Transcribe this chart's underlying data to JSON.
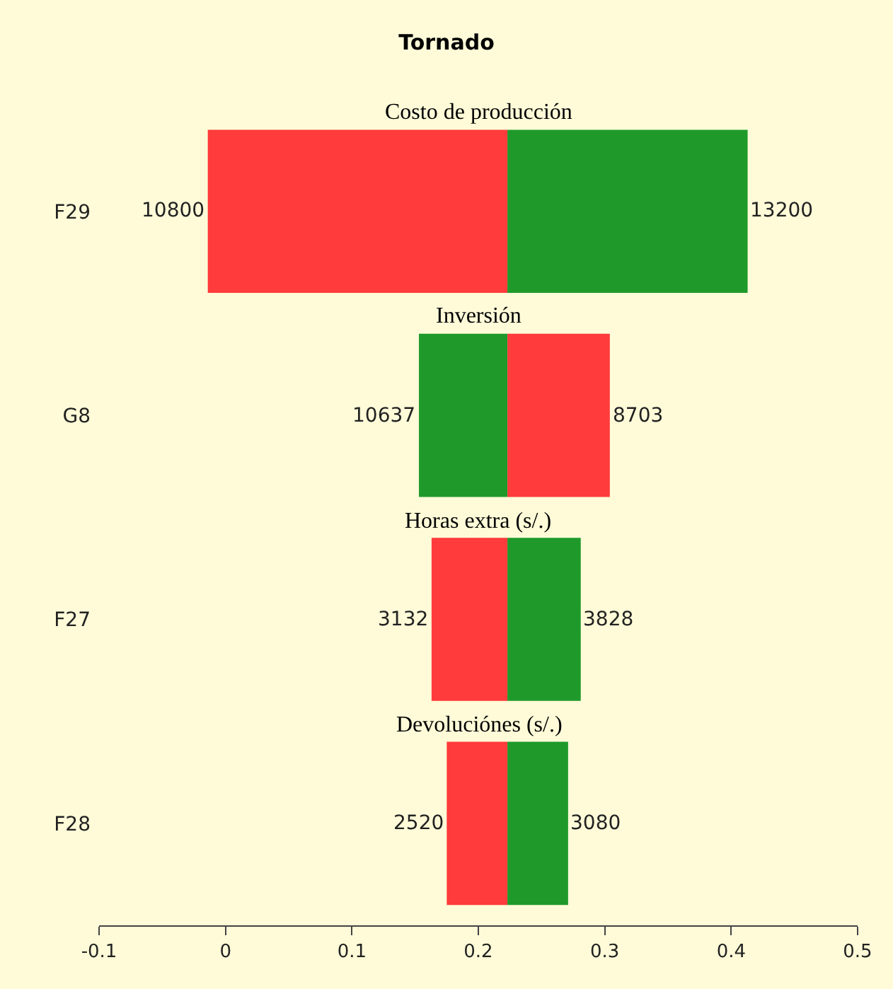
{
  "chart_data": {
    "type": "bar",
    "orientation": "horizontal",
    "title": "Tornado",
    "categories": [
      "F29",
      "G8",
      "F27",
      "F28"
    ],
    "series": [
      {
        "colors": [
          "#ff3b3b",
          "#1f9a2a",
          "#ff3b3b",
          "#ff3b3b"
        ],
        "base": [
          -0.014,
          0.153,
          0.163,
          0.175
        ],
        "values": [
          0.237,
          0.07,
          0.06,
          0.048
        ]
      },
      {
        "colors": [
          "#1f9a2a",
          "#ff3b3b",
          "#1f9a2a",
          "#1f9a2a"
        ],
        "base": [
          0.223,
          0.223,
          0.223,
          0.223
        ],
        "values": [
          0.19,
          0.081,
          0.058,
          0.048
        ]
      }
    ],
    "annotations": [
      "Costo de producción",
      "Inversión",
      "Horas extra (s/.)",
      "Devoluciónes (s/.)",
      {
        "text": "10800",
        "x": -0.014,
        "y": "F29"
      },
      {
        "text": "13200",
        "x": 0.413,
        "y": "F29"
      },
      {
        "text": "10637",
        "x": 0.153,
        "y": "G8"
      },
      {
        "text": "8703",
        "x": 0.304,
        "y": "G8"
      },
      {
        "text": "3132",
        "x": 0.163,
        "y": "F27"
      },
      {
        "text": "3828",
        "x": 0.281,
        "y": "F27"
      },
      {
        "text": "2520",
        "x": 0.175,
        "y": "F28"
      },
      {
        "text": "3080",
        "x": 0.271,
        "y": "F28"
      }
    ],
    "xlim": [
      -0.1,
      0.5
    ],
    "xticks": [
      -0.1,
      0,
      0.1,
      0.2,
      0.3,
      0.4,
      0.5
    ],
    "grid": false
  }
}
